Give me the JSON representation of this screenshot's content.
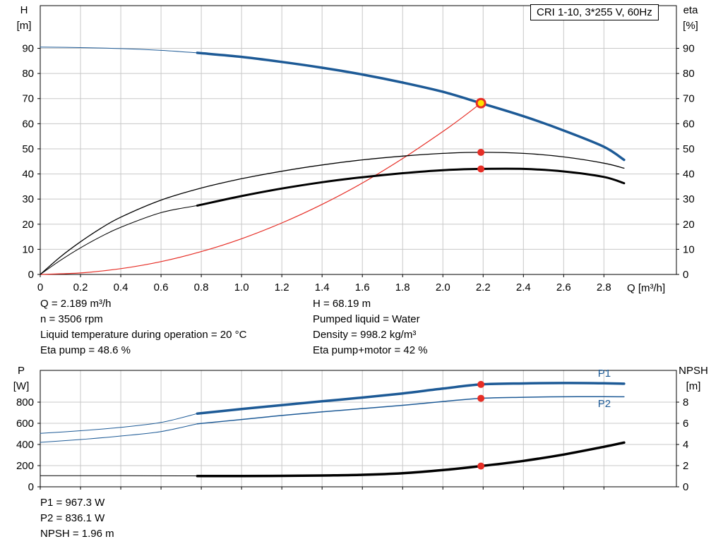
{
  "title_box": "CRI 1-10, 3*255 V, 60Hz",
  "colors": {
    "blue": "#1d5a96",
    "red": "#e62e26",
    "black": "#000000",
    "grid": "#c8c8c8",
    "yellow": "#ffe200"
  },
  "labels": {
    "h_axis": "H\n[m]",
    "eta_axis": "eta\n[%]",
    "p_axis": "P\n[W]",
    "npsh_axis": "NPSH\n[m]",
    "q_axis": "Q [m³/h]"
  },
  "info_top": {
    "left": [
      "Q = 2.189 m³/h",
      "n = 3506 rpm",
      "Liquid temperature during operation = 20 °C",
      "Eta pump = 48.6 %"
    ],
    "right": [
      "H = 68.19 m",
      "Pumped liquid = Water",
      "Density = 998.2 kg/m³",
      "Eta pump+motor = 42 %"
    ]
  },
  "info_bottom": [
    "P1 = 967.3 W",
    "P2 = 836.1 W",
    "NPSH = 1.96 m"
  ],
  "chart_data": [
    {
      "type": "line",
      "name": "qh-eta-chart",
      "title": "CRI 1-10, 3*255 V, 60Hz",
      "xlabel": "Q [m³/h]",
      "ylabel_left": "H [m]",
      "ylabel_right": "eta [%]",
      "xlim": [
        0,
        3.16
      ],
      "ylim_left": [
        0,
        107
      ],
      "ylim_right": [
        0,
        107
      ],
      "x_ticks": [
        "0",
        "0.2",
        "0.4",
        "0.6",
        "0.8",
        "1.0",
        "1.2",
        "1.4",
        "1.6",
        "1.8",
        "2.0",
        "2.2",
        "2.4",
        "2.6",
        "2.8"
      ],
      "show_x_labels": true,
      "y_ticks_left": [
        "0",
        "10",
        "20",
        "30",
        "40",
        "50",
        "60",
        "70",
        "80",
        "90"
      ],
      "y_ticks_right": [
        "0",
        "10",
        "20",
        "30",
        "40",
        "50",
        "60",
        "70",
        "80",
        "90"
      ],
      "duty_point": {
        "q": 2.189,
        "h": 68.19,
        "eta_pump": 48.6,
        "eta_pump_motor": 42.0
      },
      "series": [
        {
          "name": "h-curve-lead",
          "color": "#1d5a96",
          "width": 1,
          "axis": "left",
          "points": [
            [
              0,
              90.5
            ],
            [
              0.2,
              90.3
            ],
            [
              0.4,
              89.9
            ],
            [
              0.6,
              89.2
            ],
            [
              0.78,
              88.2
            ]
          ]
        },
        {
          "name": "h-curve",
          "color": "#1d5a96",
          "width": 3.5,
          "axis": "left",
          "points": [
            [
              0.78,
              88.2
            ],
            [
              1.0,
              86.6
            ],
            [
              1.2,
              84.6
            ],
            [
              1.4,
              82.3
            ],
            [
              1.6,
              79.6
            ],
            [
              1.8,
              76.4
            ],
            [
              2.0,
              72.7
            ],
            [
              2.189,
              68.19
            ],
            [
              2.4,
              63.0
            ],
            [
              2.6,
              57.3
            ],
            [
              2.8,
              50.8
            ],
            [
              2.9,
              45.6
            ]
          ]
        },
        {
          "name": "system-curve",
          "color": "#e62e26",
          "width": 1.2,
          "axis": "left",
          "points": [
            [
              0,
              0
            ],
            [
              0.2,
              0.6
            ],
            [
              0.4,
              2.3
            ],
            [
              0.6,
              5.1
            ],
            [
              0.8,
              9.1
            ],
            [
              1.0,
              14.2
            ],
            [
              1.2,
              20.5
            ],
            [
              1.4,
              27.9
            ],
            [
              1.6,
              36.4
            ],
            [
              1.8,
              46.1
            ],
            [
              2.0,
              56.9
            ],
            [
              2.1,
              62.7
            ],
            [
              2.189,
              68.19
            ]
          ]
        },
        {
          "name": "eta-pump-curve",
          "color": "#000000",
          "width": 1.3,
          "axis": "right",
          "points": [
            [
              0,
              0
            ],
            [
              0.1,
              7.0
            ],
            [
              0.2,
              13.0
            ],
            [
              0.3,
              18.3
            ],
            [
              0.4,
              22.8
            ],
            [
              0.6,
              29.6
            ],
            [
              0.8,
              34.4
            ],
            [
              1.0,
              38.1
            ],
            [
              1.2,
              41.1
            ],
            [
              1.4,
              43.6
            ],
            [
              1.6,
              45.6
            ],
            [
              1.8,
              47.1
            ],
            [
              2.0,
              48.2
            ],
            [
              2.189,
              48.6
            ],
            [
              2.4,
              48.2
            ],
            [
              2.6,
              46.8
            ],
            [
              2.8,
              44.3
            ],
            [
              2.9,
              42.3
            ]
          ]
        },
        {
          "name": "eta-pump-motor-lead",
          "color": "#000000",
          "width": 1,
          "axis": "right",
          "points": [
            [
              0,
              0
            ],
            [
              0.1,
              5.6
            ],
            [
              0.2,
              10.6
            ],
            [
              0.3,
              15.0
            ],
            [
              0.4,
              18.8
            ],
            [
              0.6,
              24.6
            ],
            [
              0.78,
              27.4
            ]
          ]
        },
        {
          "name": "eta-pump-motor-curve",
          "color": "#000000",
          "width": 3,
          "axis": "right",
          "points": [
            [
              0.78,
              27.4
            ],
            [
              1.0,
              31.2
            ],
            [
              1.2,
              34.2
            ],
            [
              1.4,
              36.7
            ],
            [
              1.6,
              38.7
            ],
            [
              1.8,
              40.3
            ],
            [
              2.0,
              41.5
            ],
            [
              2.189,
              42.0
            ],
            [
              2.4,
              42.0
            ],
            [
              2.6,
              41.0
            ],
            [
              2.8,
              38.8
            ],
            [
              2.9,
              36.3
            ]
          ]
        }
      ],
      "markers": [
        {
          "name": "eta-pump-duty-dot",
          "x": 2.189,
          "y": 48.6,
          "axis": "right",
          "r": 5,
          "fill": "#e62e26"
        },
        {
          "name": "eta-pump-motor-duty-dot",
          "x": 2.189,
          "y": 42.0,
          "axis": "right",
          "r": 5,
          "fill": "#e62e26"
        },
        {
          "name": "duty-point",
          "x": 2.189,
          "y": 68.19,
          "axis": "left",
          "r": 6,
          "fill": "#ffe200",
          "stroke": "#e62e26",
          "sw": 3,
          "interactable": true
        }
      ],
      "annotations": []
    },
    {
      "type": "line",
      "name": "power-npsh-chart",
      "title": "",
      "xlabel": "",
      "ylabel_left": "P [W]",
      "ylabel_right": "NPSH [m]",
      "xlim": [
        0,
        3.16
      ],
      "ylim_left": [
        0,
        1100
      ],
      "ylim_right": [
        0,
        11
      ],
      "x_ticks": [
        "0",
        "0.2",
        "0.4",
        "0.6",
        "0.8",
        "1.0",
        "1.2",
        "1.4",
        "1.6",
        "1.8",
        "2.0",
        "2.2",
        "2.4",
        "2.6",
        "2.8"
      ],
      "show_x_labels": false,
      "y_ticks_left": [
        "0",
        "200",
        "400",
        "600",
        "800"
      ],
      "y_ticks_right": [
        "0",
        "2",
        "4",
        "6",
        "8"
      ],
      "duty_point": {
        "q": 2.189,
        "p1": 967.3,
        "p2": 836.1,
        "npsh": 1.96
      },
      "series": [
        {
          "name": "p1-curve-lead",
          "color": "#1d5a96",
          "width": 1,
          "axis": "left",
          "points": [
            [
              0,
              505
            ],
            [
              0.2,
              530
            ],
            [
              0.4,
              562
            ],
            [
              0.6,
              608
            ],
            [
              0.78,
              692
            ]
          ]
        },
        {
          "name": "p1-curve",
          "color": "#1d5a96",
          "width": 3.5,
          "axis": "left",
          "points": [
            [
              0.78,
              692
            ],
            [
              1.0,
              735
            ],
            [
              1.2,
              772
            ],
            [
              1.4,
              808
            ],
            [
              1.6,
              843
            ],
            [
              1.8,
              882
            ],
            [
              2.0,
              928
            ],
            [
              2.189,
              967.3
            ],
            [
              2.4,
              977
            ],
            [
              2.6,
              981
            ],
            [
              2.8,
              978
            ],
            [
              2.9,
              974
            ]
          ]
        },
        {
          "name": "p2-curve-lead",
          "color": "#1d5a96",
          "width": 1,
          "axis": "left",
          "points": [
            [
              0,
              420
            ],
            [
              0.2,
              447
            ],
            [
              0.4,
              480
            ],
            [
              0.6,
              522
            ],
            [
              0.78,
              595
            ]
          ]
        },
        {
          "name": "p2-curve",
          "color": "#1d5a96",
          "width": 1.5,
          "axis": "left",
          "points": [
            [
              0.78,
              595
            ],
            [
              1.0,
              636
            ],
            [
              1.2,
              674
            ],
            [
              1.4,
              708
            ],
            [
              1.6,
              739
            ],
            [
              1.8,
              770
            ],
            [
              2.0,
              806
            ],
            [
              2.189,
              836.1
            ],
            [
              2.4,
              846
            ],
            [
              2.6,
              851
            ],
            [
              2.8,
              852
            ],
            [
              2.9,
              851
            ]
          ]
        },
        {
          "name": "npsh-curve-lead",
          "color": "#000000",
          "width": 1,
          "axis": "right",
          "points": [
            [
              0,
              1.05
            ],
            [
              0.4,
              1.05
            ],
            [
              0.78,
              1.03
            ]
          ]
        },
        {
          "name": "npsh-curve",
          "color": "#000000",
          "width": 3.5,
          "axis": "right",
          "points": [
            [
              0.78,
              1.02
            ],
            [
              1.0,
              1.02
            ],
            [
              1.2,
              1.03
            ],
            [
              1.4,
              1.07
            ],
            [
              1.6,
              1.13
            ],
            [
              1.8,
              1.28
            ],
            [
              2.0,
              1.58
            ],
            [
              2.189,
              1.96
            ],
            [
              2.4,
              2.45
            ],
            [
              2.6,
              3.05
            ],
            [
              2.8,
              3.78
            ],
            [
              2.9,
              4.18
            ]
          ]
        }
      ],
      "markers": [
        {
          "name": "p1-duty-dot",
          "x": 2.189,
          "y": 967.3,
          "axis": "left",
          "r": 5,
          "fill": "#e62e26"
        },
        {
          "name": "p2-duty-dot",
          "x": 2.189,
          "y": 836.1,
          "axis": "left",
          "r": 5,
          "fill": "#e62e26"
        },
        {
          "name": "npsh-duty-dot",
          "x": 2.189,
          "y": 1.96,
          "axis": "right",
          "r": 5,
          "fill": "#e62e26"
        }
      ],
      "annotations": [
        {
          "name": "p1-curve-label",
          "text": "P1",
          "x": 2.77,
          "y": 1040,
          "axis": "left",
          "color": "#1d5a96"
        },
        {
          "name": "p2-curve-label",
          "text": "P2",
          "x": 2.77,
          "y": 752,
          "axis": "left",
          "color": "#1d5a96"
        }
      ]
    }
  ]
}
